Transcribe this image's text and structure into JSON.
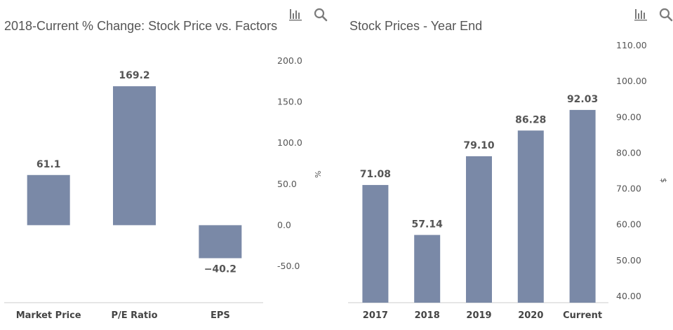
{
  "colors": {
    "bar": "#7a89a7",
    "axis": "#cccccc",
    "text": "#555555",
    "icon": "#7b7b7b"
  },
  "icons": [
    "bar-chart-icon",
    "search-icon"
  ],
  "chart_data": [
    {
      "type": "bar",
      "title": "2018-Current % Change: Stock Price vs. Factors",
      "categories": [
        "Market Price",
        "P/E Ratio",
        "EPS"
      ],
      "values": [
        61.1,
        169.2,
        -40.2
      ],
      "value_labels": [
        "61.1",
        "169.2",
        "−40.2"
      ],
      "ylabel": "%",
      "ylim": [
        -60,
        200
      ],
      "yticks": [
        200,
        150,
        100,
        50,
        0,
        -50
      ],
      "ytick_labels": [
        "200.0",
        "150.0",
        "100.0",
        "50.0",
        "0.0",
        "-50.0"
      ],
      "axis_position": "right",
      "grid": false
    },
    {
      "type": "bar",
      "title": "Stock Prices - Year End",
      "categories": [
        "2017",
        "2018",
        "2019",
        "2020",
        "Current"
      ],
      "values": [
        71.08,
        57.14,
        79.1,
        86.28,
        92.03
      ],
      "value_labels": [
        "71.08",
        "57.14",
        "79.10",
        "86.28",
        "92.03"
      ],
      "ylabel": "$",
      "ylim": [
        40,
        110
      ],
      "yticks": [
        110,
        100,
        90,
        80,
        70,
        60,
        50,
        40
      ],
      "ytick_labels": [
        "110.00",
        "100.00",
        "90.00",
        "80.00",
        "70.00",
        "60.00",
        "50.00",
        "40.00"
      ],
      "axis_position": "right",
      "grid": false
    }
  ]
}
